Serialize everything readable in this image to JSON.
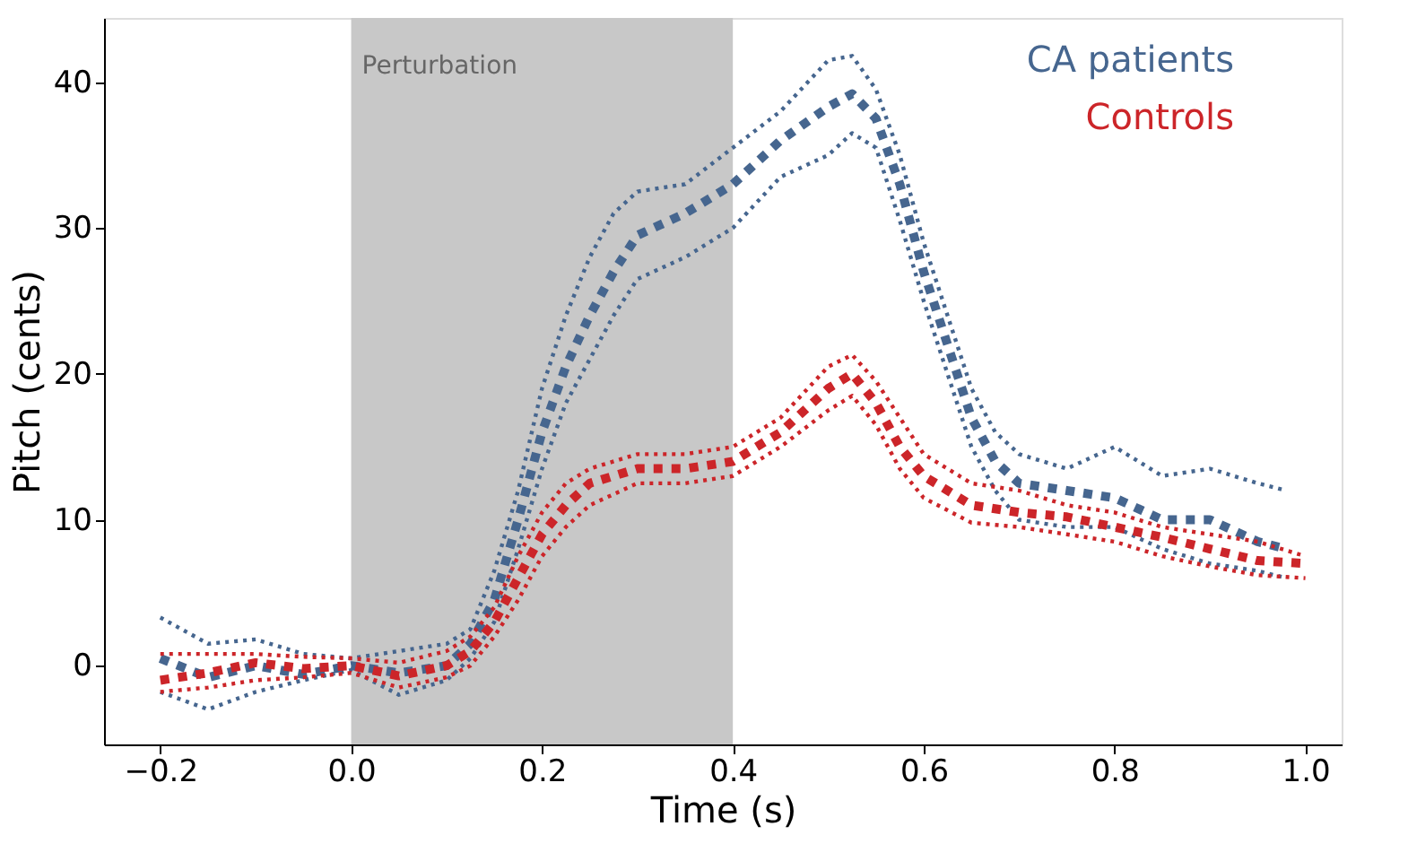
{
  "chart_data": {
    "type": "line",
    "xlabel": "Time (s)",
    "ylabel": "Pitch (cents)",
    "xlim": [
      -0.259,
      1.038
    ],
    "ylim": [
      -5.4,
      44.4
    ],
    "xticks": [
      {
        "value": -0.2,
        "label": "−0.2"
      },
      {
        "value": 0,
        "label": "0.0"
      },
      {
        "value": 0.2,
        "label": "0.2"
      },
      {
        "value": 0.4,
        "label": "0.4"
      },
      {
        "value": 0.6,
        "label": "0.6"
      },
      {
        "value": 0.8,
        "label": "0.8"
      },
      {
        "value": 1,
        "label": "1.0"
      }
    ],
    "yticks": [
      0,
      10,
      20,
      30,
      40
    ],
    "grid": false,
    "legend": "top right",
    "marker": "none",
    "bands": [
      {
        "axis": "x",
        "from": 0,
        "to": 0.4,
        "label": "Perturbation",
        "color": "#c8c8c8"
      }
    ],
    "series": [
      {
        "name": "CA patients",
        "color": "#46668f",
        "line_style": "dashed",
        "x": [
          -0.2,
          -0.15,
          -0.1,
          -0.05,
          0,
          0.05,
          0.1,
          0.125,
          0.15,
          0.175,
          0.2,
          0.225,
          0.25,
          0.275,
          0.3,
          0.35,
          0.4,
          0.45,
          0.5,
          0.525,
          0.55,
          0.575,
          0.6,
          0.625,
          0.65,
          0.675,
          0.7,
          0.75,
          0.8,
          0.85,
          0.9,
          0.95,
          0.98
        ],
        "values": [
          0.5,
          -0.8,
          0,
          -0.6,
          0,
          -0.5,
          0,
          1.5,
          4.5,
          10,
          16,
          20.5,
          24,
          27,
          29.5,
          31,
          33,
          36,
          38.3,
          39.2,
          37.5,
          33,
          27,
          22,
          17,
          14,
          12.5,
          12,
          11.5,
          10,
          10,
          8.5,
          8
        ]
      },
      {
        "color": "#46668f",
        "line_style": "dotted",
        "x": [
          -0.2,
          -0.15,
          -0.1,
          -0.05,
          0,
          0.05,
          0.1,
          0.125,
          0.15,
          0.175,
          0.2,
          0.225,
          0.25,
          0.275,
          0.3,
          0.35,
          0.4,
          0.45,
          0.5,
          0.525,
          0.55,
          0.575,
          0.6,
          0.625,
          0.65,
          0.675,
          0.7,
          0.75,
          0.8,
          0.85,
          0.9,
          0.95,
          0.98
        ],
        "values": [
          3.3,
          1.5,
          1.8,
          0.8,
          0.5,
          1,
          1.5,
          2.5,
          6.5,
          12,
          19,
          24,
          28,
          31,
          32.5,
          33,
          35.5,
          38,
          41.5,
          41.8,
          39.5,
          35,
          29,
          24,
          19,
          16,
          14.5,
          13.5,
          15,
          13,
          13.5,
          12.5,
          12
        ]
      },
      {
        "color": "#46668f",
        "line_style": "dotted",
        "x": [
          -0.2,
          -0.15,
          -0.1,
          -0.05,
          0,
          0.05,
          0.1,
          0.125,
          0.15,
          0.175,
          0.2,
          0.225,
          0.25,
          0.275,
          0.3,
          0.35,
          0.4,
          0.45,
          0.5,
          0.525,
          0.55,
          0.575,
          0.6,
          0.625,
          0.65,
          0.675,
          0.7,
          0.75,
          0.8,
          0.85,
          0.9,
          0.95,
          0.98
        ],
        "values": [
          -1.8,
          -3,
          -1.8,
          -1,
          -0.3,
          -2,
          -1,
          0.5,
          3,
          8,
          13.5,
          18,
          21,
          24,
          26.5,
          28,
          30,
          33.5,
          35,
          36.5,
          35.5,
          30.5,
          25,
          20,
          15,
          12,
          10,
          9.5,
          9.5,
          8,
          7,
          6.5,
          6
        ]
      },
      {
        "name": "Controls",
        "color": "#cc2529",
        "line_style": "dashed",
        "x": [
          -0.2,
          -0.15,
          -0.1,
          -0.05,
          0,
          0.05,
          0.1,
          0.125,
          0.15,
          0.175,
          0.2,
          0.225,
          0.25,
          0.3,
          0.35,
          0.4,
          0.45,
          0.5,
          0.525,
          0.55,
          0.575,
          0.6,
          0.65,
          0.7,
          0.75,
          0.8,
          0.85,
          0.9,
          0.95,
          1.0
        ],
        "values": [
          -1,
          -0.5,
          0.2,
          -0.2,
          0,
          -0.7,
          0,
          1,
          3,
          6,
          9,
          11,
          12.5,
          13.5,
          13.5,
          14,
          16,
          19,
          20,
          18,
          15,
          13,
          11,
          10.5,
          10.2,
          9.5,
          8.8,
          8,
          7.2,
          7
        ]
      },
      {
        "color": "#cc2529",
        "line_style": "dotted",
        "x": [
          -0.2,
          -0.15,
          -0.1,
          -0.05,
          0,
          0.05,
          0.1,
          0.125,
          0.15,
          0.175,
          0.2,
          0.225,
          0.25,
          0.3,
          0.35,
          0.4,
          0.45,
          0.5,
          0.525,
          0.55,
          0.575,
          0.6,
          0.65,
          0.7,
          0.75,
          0.8,
          0.85,
          0.9,
          0.95,
          1.0
        ],
        "values": [
          0.8,
          0.8,
          0.8,
          0.6,
          0.5,
          0.2,
          1,
          2,
          4,
          7.5,
          10.5,
          12.5,
          13.5,
          14.5,
          14.5,
          15,
          17,
          20.5,
          21.3,
          19.5,
          17,
          14.5,
          12.5,
          12,
          11,
          10.5,
          9.5,
          9,
          8.5,
          7.5
        ]
      },
      {
        "color": "#cc2529",
        "line_style": "dotted",
        "x": [
          -0.2,
          -0.15,
          -0.1,
          -0.05,
          0,
          0.05,
          0.1,
          0.125,
          0.15,
          0.175,
          0.2,
          0.225,
          0.25,
          0.3,
          0.35,
          0.4,
          0.45,
          0.5,
          0.525,
          0.55,
          0.575,
          0.6,
          0.65,
          0.7,
          0.75,
          0.8,
          0.85,
          0.9,
          0.95,
          1.0
        ],
        "values": [
          -1.8,
          -1.5,
          -1,
          -0.8,
          -0.5,
          -1.5,
          -0.8,
          0,
          2,
          4.5,
          7.5,
          9.5,
          11,
          12.5,
          12.5,
          13,
          15,
          17.5,
          18.5,
          16.5,
          13.5,
          11.5,
          9.8,
          9.5,
          9,
          8.5,
          7.5,
          6.8,
          6.2,
          6
        ]
      }
    ]
  }
}
